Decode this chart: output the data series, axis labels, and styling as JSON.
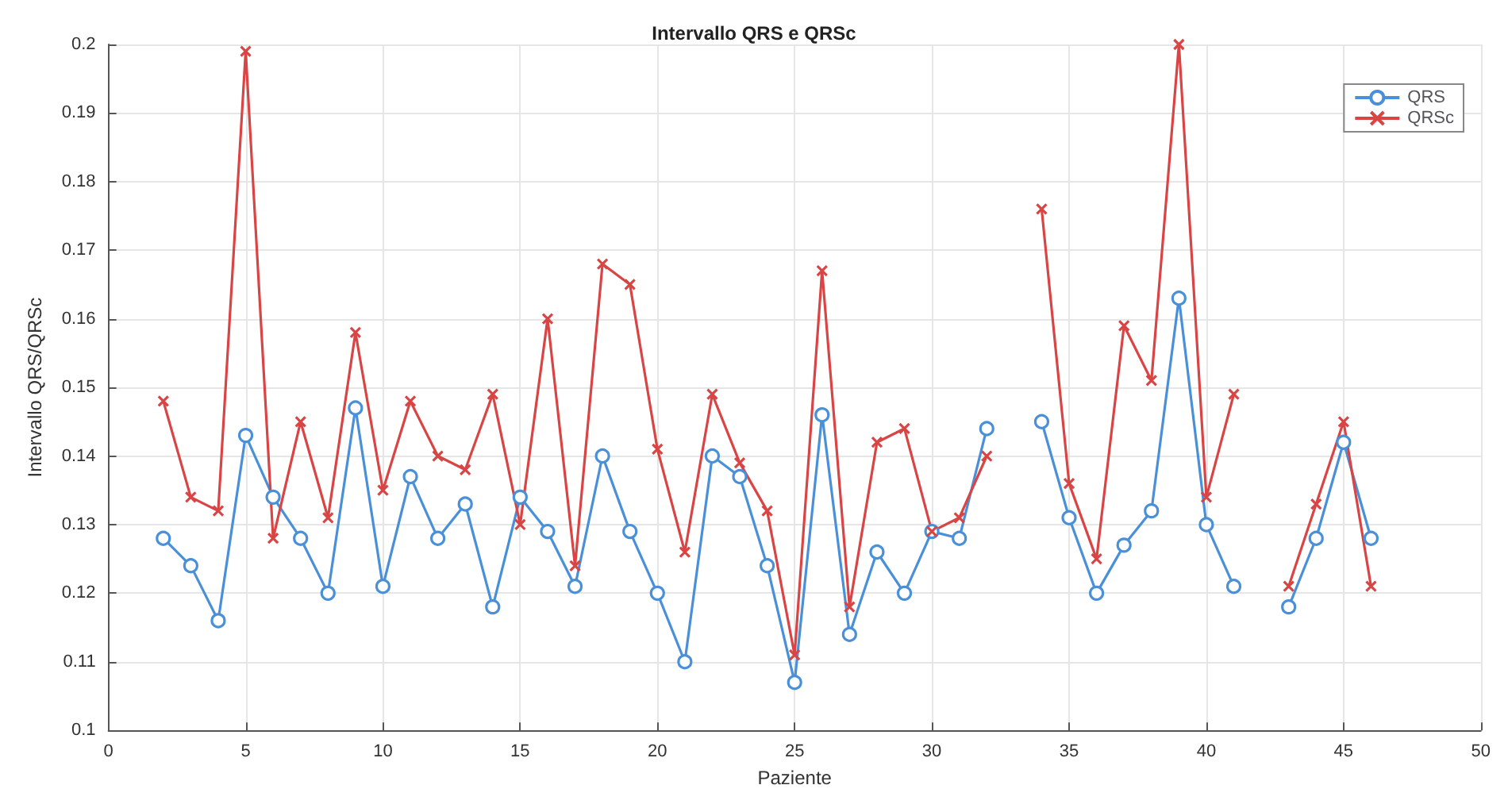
{
  "chart_data": {
    "type": "line",
    "title": "Intervallo QRS e QRSc",
    "xlabel": "Paziente",
    "ylabel": "Intervallo QRS/QRSc",
    "x": [
      2,
      3,
      4,
      5,
      6,
      7,
      8,
      9,
      10,
      11,
      12,
      13,
      14,
      15,
      16,
      17,
      18,
      19,
      20,
      21,
      22,
      23,
      24,
      25,
      26,
      27,
      28,
      29,
      30,
      31,
      32,
      33,
      34,
      35,
      36,
      37,
      38,
      39,
      40,
      41,
      42,
      43,
      44,
      45,
      46
    ],
    "series": [
      {
        "name": "QRS",
        "color": "#4a90d9",
        "marker": "circle",
        "values": [
          0.128,
          0.124,
          0.116,
          0.143,
          0.134,
          0.128,
          0.12,
          0.147,
          0.121,
          0.137,
          0.128,
          0.133,
          0.118,
          0.134,
          0.129,
          0.121,
          0.14,
          0.129,
          0.12,
          0.11,
          0.14,
          0.137,
          0.124,
          0.107,
          0.146,
          0.114,
          0.126,
          0.12,
          0.129,
          0.128,
          0.144,
          null,
          0.145,
          0.131,
          0.12,
          0.127,
          0.132,
          0.163,
          0.13,
          0.121,
          null,
          0.118,
          0.128,
          0.142,
          0.128
        ]
      },
      {
        "name": "QRSc",
        "color": "#d94545",
        "marker": "cross",
        "values": [
          0.148,
          0.134,
          0.132,
          0.199,
          0.128,
          0.145,
          0.131,
          0.158,
          0.135,
          0.148,
          0.14,
          0.138,
          0.149,
          0.13,
          0.16,
          0.124,
          0.168,
          0.165,
          0.141,
          0.126,
          0.149,
          0.139,
          0.132,
          0.111,
          0.167,
          0.118,
          0.142,
          0.144,
          0.129,
          0.131,
          0.14,
          null,
          0.176,
          0.136,
          0.125,
          0.159,
          0.151,
          0.2,
          0.134,
          0.149,
          null,
          0.121,
          0.133,
          0.145,
          0.121
        ]
      }
    ],
    "xlim": [
      0,
      50
    ],
    "xticks": [
      0,
      5,
      10,
      15,
      20,
      25,
      30,
      35,
      40,
      45,
      50
    ],
    "ylim": [
      0.1,
      0.2
    ],
    "yticks": [
      0.1,
      0.11,
      0.12,
      0.13,
      0.14,
      0.15,
      0.16,
      0.17,
      0.18,
      0.19,
      0.2
    ],
    "grid": true,
    "legend": "top right",
    "line_style": "solid"
  }
}
